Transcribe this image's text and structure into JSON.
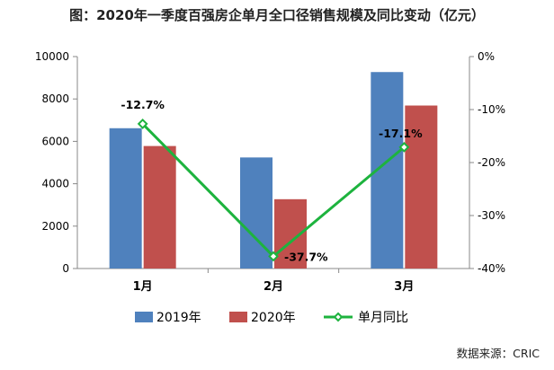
{
  "title": "图：2020年一季度百强房企单月全口径销售规模及同比变动（亿元）",
  "source": "数据来源：CRIC",
  "chart_data": {
    "type": "bar",
    "categories": [
      "1月",
      "2月",
      "3月"
    ],
    "series": [
      {
        "name": "2019年",
        "kind": "bar",
        "axis": "left",
        "color": "#4f81bd",
        "values": [
          6620,
          5240,
          9270
        ]
      },
      {
        "name": "2020年",
        "kind": "bar",
        "axis": "left",
        "color": "#c0504d",
        "values": [
          5780,
          3270,
          7690
        ]
      },
      {
        "name": "单月同比",
        "kind": "line",
        "axis": "right",
        "color": "#1db33e",
        "values": [
          -12.7,
          -37.7,
          -17.1
        ],
        "labels": [
          "-12.7%",
          "-37.7%",
          "-17.1%"
        ]
      }
    ],
    "y_left": {
      "min": 0,
      "max": 10000,
      "ticks": [
        "0",
        "2000",
        "4000",
        "6000",
        "8000",
        "10000"
      ]
    },
    "y_right": {
      "min": -40,
      "max": 0,
      "ticks": [
        "0%",
        "-10%",
        "-20%",
        "-30%",
        "-40%"
      ]
    },
    "grid": false,
    "legend_position": "bottom"
  }
}
